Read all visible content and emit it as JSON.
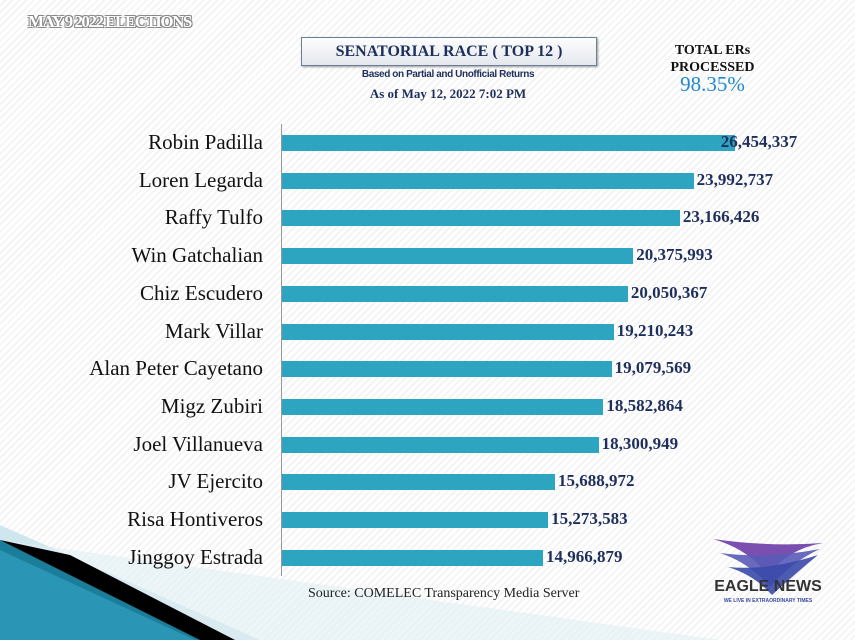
{
  "header": {
    "topline": "MAY 9 2022 ELECTIONS",
    "title": "SENATORIAL RACE  ( TOP 12 )",
    "subtitle": "Based on Partial and Unofficial Returns",
    "as_of": "As of May 12, 2022   7:02 PM",
    "ers_label_1": "TOTAL  ERs",
    "ers_label_2": "PROCESSED",
    "ers_value": "98.35%"
  },
  "chart_data": {
    "type": "bar",
    "orientation": "horizontal",
    "bar_color": "#2ea5c0",
    "categories": [
      "Robin Padilla",
      "Loren Legarda",
      "Raffy Tulfo",
      "Win Gatchalian",
      "Chiz Escudero",
      "Mark Villar",
      "Alan Peter Cayetano",
      "Migz Zubiri",
      "Joel Villanueva",
      "JV Ejercito",
      "Risa Hontiveros",
      "Jinggoy Estrada"
    ],
    "values": [
      26454337,
      23992737,
      23166426,
      20375993,
      20050367,
      19210243,
      19079569,
      18582864,
      18300949,
      15688972,
      15273583,
      14966879
    ],
    "value_labels": [
      "26,454,337",
      "23,992,737",
      "23,166,426",
      "20,375,993",
      "20,050,367",
      "19,210,243",
      "19,079,569",
      "18,582,864",
      "18,300,949",
      "15,688,972",
      "15,273,583",
      "14,966,879"
    ]
  },
  "footer": {
    "source": "Source: COMELEC Transparency Media Server",
    "logo_name": "EAGLE NEWS",
    "logo_tagline": "WE LIVE IN EXTRAORDINARY TIMES"
  }
}
